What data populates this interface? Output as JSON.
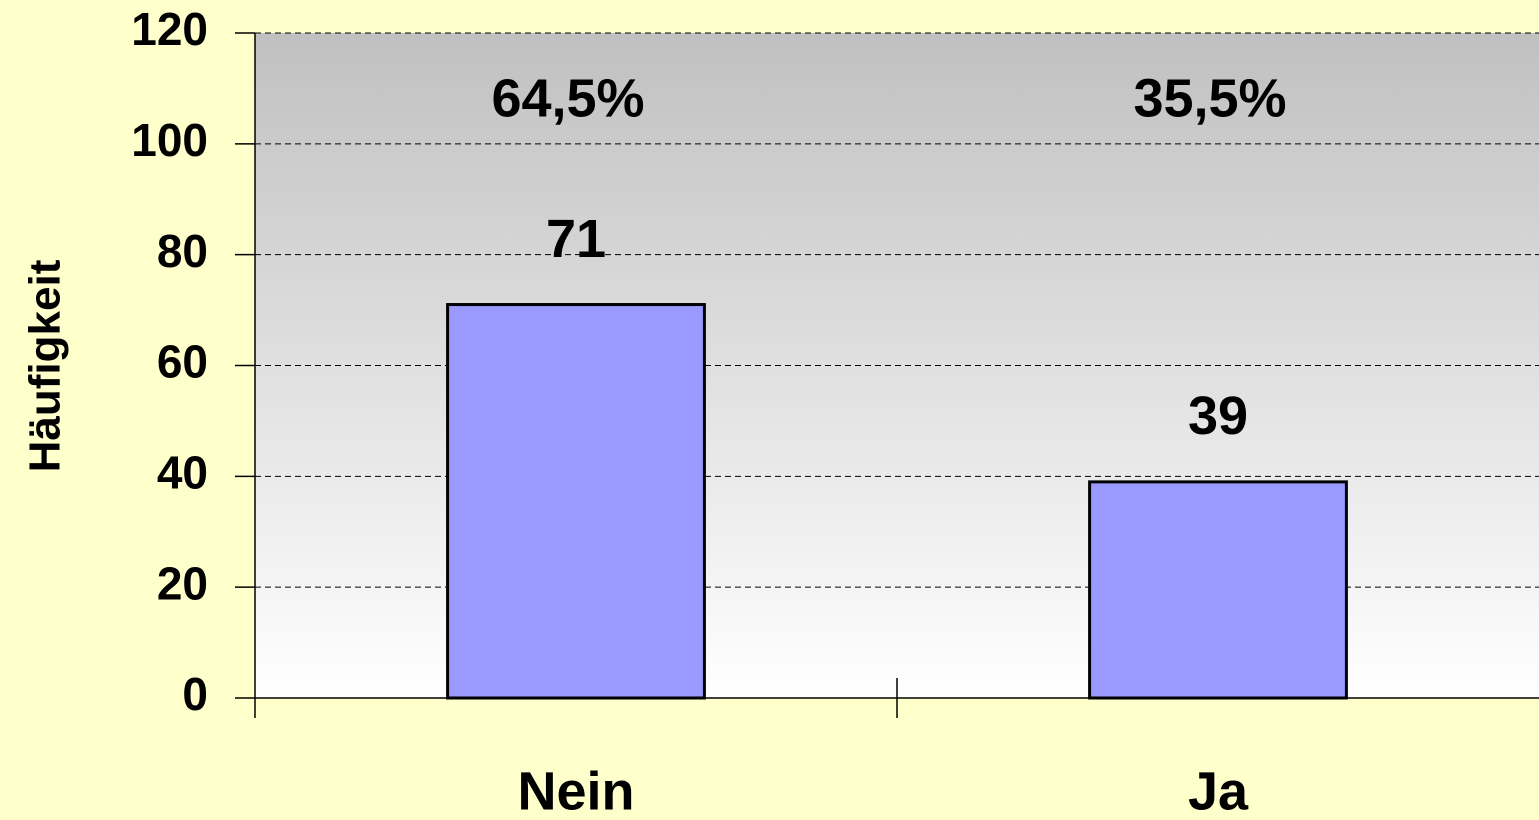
{
  "chart_data": {
    "type": "bar",
    "y_label": "Häufigkeit",
    "categories": [
      "Nein",
      "Ja"
    ],
    "values": [
      71,
      39
    ],
    "annotations": [
      "64,5%",
      "35,5%"
    ],
    "color": "#9999ff",
    "ylim": [
      0,
      120
    ],
    "yticks": [
      0,
      20,
      40,
      60,
      80,
      100,
      120
    ],
    "grid": true
  }
}
